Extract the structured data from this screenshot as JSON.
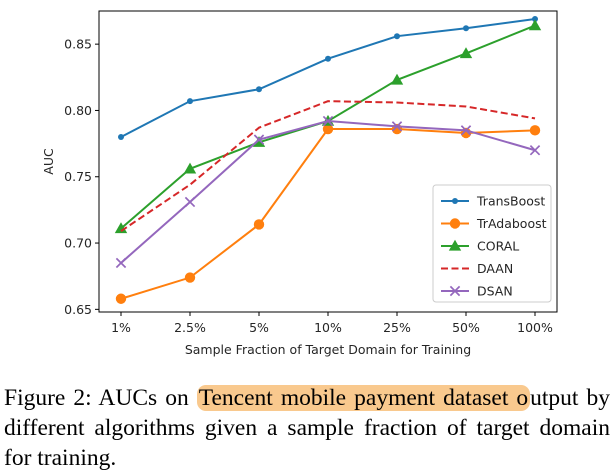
{
  "chart_data": {
    "type": "line",
    "title": "",
    "xlabel": "Sample Fraction of Target Domain for Training",
    "ylabel": "AUC",
    "categories": [
      "1%",
      "2.5%",
      "5%",
      "10%",
      "25%",
      "50%",
      "100%"
    ],
    "ylim": [
      0.648,
      0.875
    ],
    "yticks": [
      "0.65",
      "0.70",
      "0.75",
      "0.80",
      "0.85"
    ],
    "legend_position": "center-right",
    "grid": false,
    "series": [
      {
        "name": "TransBoost",
        "color": "#1f77b4",
        "marker": "circle-small",
        "dash": "solid",
        "values": [
          0.78,
          0.807,
          0.816,
          0.839,
          0.856,
          0.862,
          0.869
        ]
      },
      {
        "name": "TrAdaboost",
        "color": "#ff7f0e",
        "marker": "circle",
        "dash": "solid",
        "values": [
          0.658,
          0.674,
          0.714,
          0.786,
          0.786,
          0.783,
          0.785
        ]
      },
      {
        "name": "CORAL",
        "color": "#2ca02c",
        "marker": "triangle",
        "dash": "solid",
        "values": [
          0.711,
          0.756,
          0.776,
          0.792,
          0.823,
          0.843,
          0.864
        ]
      },
      {
        "name": "DAAN",
        "color": "#d62728",
        "marker": "none",
        "dash": "dashed",
        "values": [
          0.709,
          0.744,
          0.787,
          0.807,
          0.806,
          0.803,
          0.794
        ]
      },
      {
        "name": "DSAN",
        "color": "#9467bd",
        "marker": "x",
        "dash": "solid",
        "values": [
          0.685,
          0.731,
          0.778,
          0.792,
          0.788,
          0.785,
          0.77
        ]
      }
    ]
  },
  "caption": {
    "prefix": "Figure 2: AUCs on ",
    "highlight": "Tencent mobile payment dataset o",
    "suffix": "utput by different algorithms given a sample fraction of target domain for training."
  }
}
